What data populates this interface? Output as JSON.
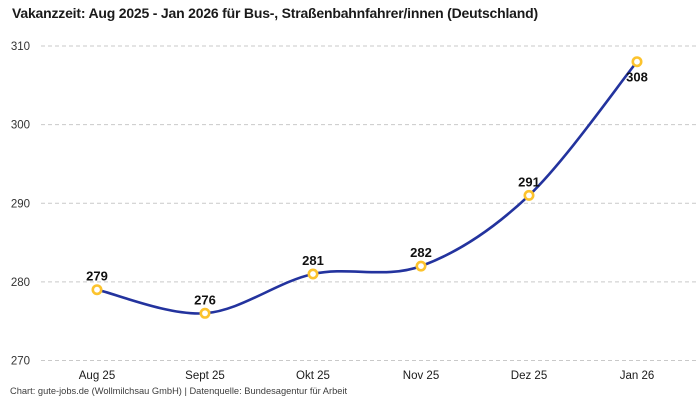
{
  "title": "Vakanzzeit: Aug 2025 - Jan 2026 für Bus-, Straßenbahnfahrer/innen (Deutschland)",
  "footer": "Chart: gute-jobs.de (Wollmilchsau GmbH) | Datenquelle: Bundesagentur für Arbeit",
  "chart_data": {
    "type": "line",
    "title": "Vakanzzeit: Aug 2025 - Jan 2026 für Bus-, Straßenbahnfahrer/innen (Deutschland)",
    "categories": [
      "Aug 25",
      "Sept 25",
      "Okt 25",
      "Nov 25",
      "Dez 25",
      "Jan 26"
    ],
    "values": [
      279,
      276,
      281,
      282,
      291,
      308
    ],
    "data_label_values": [
      "279",
      "276",
      "281",
      "282",
      "291",
      "308"
    ],
    "xlabel": "",
    "ylabel": "",
    "ylim": [
      270,
      310
    ],
    "yticks": [
      270,
      280,
      290,
      300,
      310
    ],
    "grid": "horizontal-dashed",
    "legend": "none",
    "line_style": "smooth",
    "colors": {
      "line": "#23339e",
      "marker_stroke": "#fcc32d",
      "marker_fill": "#ffffff",
      "gridline": "#c9c9c9",
      "tick_label": "#333333",
      "data_label": "#111111"
    },
    "source_note": "Chart: gute-jobs.de (Wollmilchsau GmbH) | Datenquelle: Bundesagentur für Arbeit"
  }
}
